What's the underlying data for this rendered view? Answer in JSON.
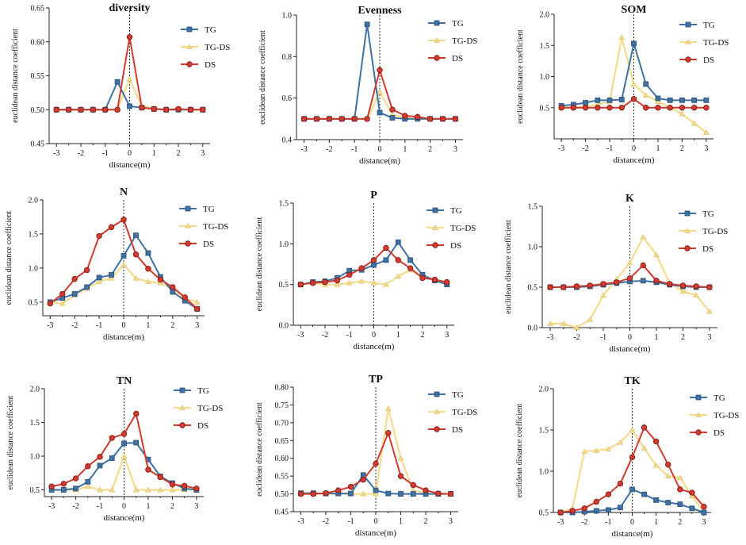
{
  "colors": {
    "TG": "#3f72a3",
    "TG-DS": "#f4dc8c",
    "DS": "#d23a2f"
  },
  "x": [
    -3,
    -2.5,
    -2,
    -1.5,
    -1,
    -0.5,
    0,
    0.5,
    1,
    1.5,
    2,
    2.5,
    3
  ],
  "xlabel": "distance(m)",
  "ylabel": "euclidean distance coefficient",
  "chart_data": [
    {
      "type": "line",
      "title": "diversity",
      "ylim": [
        0.45,
        0.65
      ],
      "yticks": [
        "0.45",
        "0.50",
        "0.55",
        "0.60",
        "0.65"
      ],
      "ytick_values": [
        0.45,
        0.5,
        0.55,
        0.6,
        0.65
      ],
      "xticks": [
        "-3",
        "-2",
        "-1",
        "0",
        "1",
        "2",
        "3"
      ],
      "legend": [
        "TG",
        "TG-DS",
        "DS"
      ],
      "series": [
        {
          "name": "TG",
          "values": [
            0.5,
            0.5,
            0.5,
            0.5,
            0.5,
            0.541,
            0.505,
            0.503,
            0.501,
            0.5,
            0.5,
            0.5,
            0.5
          ]
        },
        {
          "name": "TG-DS",
          "values": [
            0.5,
            0.5,
            0.5,
            0.5,
            0.5,
            0.5,
            0.545,
            0.505,
            0.502,
            0.5,
            0.5,
            0.5,
            0.5
          ]
        },
        {
          "name": "DS",
          "values": [
            0.5,
            0.5,
            0.5,
            0.5,
            0.5,
            0.5,
            0.607,
            0.503,
            0.501,
            0.5,
            0.501,
            0.5,
            0.5
          ]
        }
      ]
    },
    {
      "type": "line",
      "title": "Evenness",
      "ylim": [
        0.4,
        1.0
      ],
      "yticks": [
        "0.4",
        "0.6",
        "0.8",
        "1.0"
      ],
      "ytick_values": [
        0.4,
        0.6,
        0.8,
        1.0
      ],
      "xticks": [
        "-3",
        "-2",
        "-1",
        "0",
        "1",
        "2",
        "3"
      ],
      "legend": [
        "TG",
        "TG-DS",
        "DS"
      ],
      "series": [
        {
          "name": "TG",
          "values": [
            0.5,
            0.5,
            0.5,
            0.5,
            0.5,
            0.955,
            0.53,
            0.505,
            0.5,
            0.5,
            0.5,
            0.5,
            0.5
          ]
        },
        {
          "name": "TG-DS",
          "values": [
            0.5,
            0.5,
            0.5,
            0.5,
            0.5,
            0.5,
            0.63,
            0.52,
            0.505,
            0.5,
            0.5,
            0.5,
            0.5
          ]
        },
        {
          "name": "DS",
          "values": [
            0.5,
            0.5,
            0.5,
            0.5,
            0.5,
            0.5,
            0.735,
            0.545,
            0.515,
            0.51,
            0.5,
            0.5,
            0.5
          ]
        }
      ]
    },
    {
      "type": "line",
      "title": "SOM",
      "ylim": [
        0.0,
        2.0
      ],
      "yticks": [
        "0.5",
        "1.0",
        "1.5",
        "2.0"
      ],
      "ytick_values": [
        0.5,
        1.0,
        1.5,
        2.0
      ],
      "xticks": [
        "-3",
        "-2",
        "-1",
        "0",
        "1",
        "2",
        "3"
      ],
      "legend": [
        "TG",
        "TG-DS",
        "DS"
      ],
      "series": [
        {
          "name": "TG",
          "values": [
            0.53,
            0.55,
            0.58,
            0.62,
            0.62,
            0.63,
            1.53,
            0.88,
            0.65,
            0.62,
            0.62,
            0.62,
            0.62
          ]
        },
        {
          "name": "TG-DS",
          "values": [
            0.5,
            0.5,
            0.52,
            0.55,
            0.6,
            1.63,
            0.88,
            0.7,
            0.6,
            0.5,
            0.4,
            0.25,
            0.1
          ]
        },
        {
          "name": "DS",
          "values": [
            0.5,
            0.5,
            0.5,
            0.5,
            0.5,
            0.5,
            0.64,
            0.5,
            0.5,
            0.5,
            0.5,
            0.5,
            0.5
          ]
        }
      ]
    },
    {
      "type": "line",
      "title": "N",
      "ylim": [
        0.3,
        2.0
      ],
      "yticks": [
        "0.5",
        "1.0",
        "1.5",
        "2.0"
      ],
      "ytick_values": [
        0.5,
        1.0,
        1.5,
        2.0
      ],
      "xticks": [
        "-3",
        "-2",
        "-1",
        "0",
        "1",
        "2",
        "3"
      ],
      "legend": [
        "TG",
        "TG-DS",
        "DS"
      ],
      "series": [
        {
          "name": "TG",
          "values": [
            0.5,
            0.56,
            0.62,
            0.72,
            0.86,
            0.9,
            1.18,
            1.48,
            1.22,
            0.87,
            0.65,
            0.52,
            0.4
          ]
        },
        {
          "name": "TG-DS",
          "values": [
            0.5,
            0.48,
            0.6,
            0.7,
            0.8,
            0.85,
            1.05,
            0.85,
            0.8,
            0.78,
            0.7,
            0.55,
            0.5
          ]
        },
        {
          "name": "DS",
          "values": [
            0.48,
            0.62,
            0.84,
            0.97,
            1.47,
            1.6,
            1.71,
            1.2,
            0.99,
            0.83,
            0.72,
            0.57,
            0.4
          ]
        }
      ]
    },
    {
      "type": "line",
      "title": "P",
      "ylim": [
        0.0,
        1.5
      ],
      "yticks": [
        "0.0",
        "0.5",
        "1.0",
        "1.5"
      ],
      "ytick_values": [
        0.0,
        0.5,
        1.0,
        1.5
      ],
      "xticks": [
        "-3",
        "-2",
        "-1",
        "0",
        "1",
        "2",
        "3"
      ],
      "legend": [
        "TG",
        "TG-DS",
        "DS"
      ],
      "series": [
        {
          "name": "TG",
          "values": [
            0.5,
            0.53,
            0.54,
            0.58,
            0.67,
            0.68,
            0.74,
            0.8,
            1.02,
            0.8,
            0.62,
            0.55,
            0.5
          ]
        },
        {
          "name": "TG-DS",
          "values": [
            0.5,
            0.52,
            0.5,
            0.5,
            0.52,
            0.54,
            0.52,
            0.5,
            0.6,
            0.68,
            0.6,
            0.55,
            0.52
          ]
        },
        {
          "name": "DS",
          "values": [
            0.5,
            0.52,
            0.53,
            0.55,
            0.62,
            0.7,
            0.8,
            0.95,
            0.8,
            0.7,
            0.58,
            0.56,
            0.53
          ]
        }
      ]
    },
    {
      "type": "line",
      "title": "K",
      "ylim": [
        0.0,
        1.5
      ],
      "yticks": [
        "0.0",
        "0.5",
        "1.0",
        "1.5"
      ],
      "ytick_values": [
        0.0,
        0.5,
        1.0,
        1.5
      ],
      "xticks": [
        "-3",
        "-2",
        "-1",
        "0",
        "1",
        "2",
        "3"
      ],
      "legend": [
        "TG",
        "TG-DS",
        "DS"
      ],
      "series": [
        {
          "name": "TG",
          "values": [
            0.5,
            0.5,
            0.5,
            0.51,
            0.53,
            0.55,
            0.57,
            0.58,
            0.56,
            0.53,
            0.51,
            0.5,
            0.5
          ]
        },
        {
          "name": "TG-DS",
          "values": [
            0.05,
            0.05,
            0.0,
            0.1,
            0.4,
            0.6,
            0.8,
            1.12,
            0.9,
            0.55,
            0.45,
            0.4,
            0.2
          ]
        },
        {
          "name": "DS",
          "values": [
            0.5,
            0.5,
            0.51,
            0.52,
            0.54,
            0.56,
            0.61,
            0.77,
            0.58,
            0.54,
            0.52,
            0.51,
            0.5
          ]
        }
      ]
    },
    {
      "type": "line",
      "title": "TN",
      "ylim": [
        0.4,
        2.0
      ],
      "yticks": [
        "0.5",
        "1.0",
        "1.5",
        "2.0"
      ],
      "ytick_values": [
        0.5,
        1.0,
        1.5,
        2.0
      ],
      "xticks": [
        "-3",
        "-2",
        "-1",
        "0",
        "1",
        "2",
        "3"
      ],
      "legend": [
        "TG",
        "TG-DS",
        "DS"
      ],
      "series": [
        {
          "name": "TG",
          "values": [
            0.5,
            0.5,
            0.52,
            0.62,
            0.86,
            0.97,
            1.19,
            1.2,
            0.95,
            0.7,
            0.6,
            0.52,
            0.5
          ]
        },
        {
          "name": "TG-DS",
          "values": [
            0.5,
            0.5,
            0.5,
            0.55,
            0.5,
            0.5,
            1.0,
            0.5,
            0.5,
            0.5,
            0.5,
            0.5,
            0.5
          ]
        },
        {
          "name": "DS",
          "values": [
            0.55,
            0.59,
            0.67,
            0.85,
            0.99,
            1.27,
            1.33,
            1.63,
            0.8,
            0.69,
            0.58,
            0.56,
            0.52
          ]
        }
      ]
    },
    {
      "type": "line",
      "title": "TP",
      "ylim": [
        0.45,
        0.8
      ],
      "yticks": [
        "0.45",
        "0.50",
        "0.55",
        "0.60",
        "0.65",
        "0.70",
        "0.75",
        "0.80"
      ],
      "ytick_values": [
        0.45,
        0.5,
        0.55,
        0.6,
        0.65,
        0.7,
        0.75,
        0.8
      ],
      "xticks": [
        "-3",
        "-2",
        "-1",
        "0",
        "1",
        "2",
        "3"
      ],
      "legend": [
        "TG",
        "TG-DS",
        "DS"
      ],
      "series": [
        {
          "name": "TG",
          "values": [
            0.502,
            0.502,
            0.501,
            0.501,
            0.501,
            0.553,
            0.51,
            0.501,
            0.5,
            0.5,
            0.5,
            0.5,
            0.5
          ]
        },
        {
          "name": "TG-DS",
          "values": [
            0.5,
            0.5,
            0.5,
            0.5,
            0.5,
            0.5,
            0.5,
            0.74,
            0.6,
            0.51,
            0.5,
            0.5,
            0.5
          ]
        },
        {
          "name": "DS",
          "values": [
            0.5,
            0.5,
            0.502,
            0.51,
            0.52,
            0.54,
            0.585,
            0.671,
            0.55,
            0.525,
            0.51,
            0.501,
            0.5
          ]
        }
      ]
    },
    {
      "type": "line",
      "title": "TK",
      "ylim": [
        0.5,
        2.0
      ],
      "yticks": [
        "0.5",
        "1.0",
        "1.5",
        "2.0"
      ],
      "ytick_values": [
        0.5,
        1.0,
        1.5,
        2.0
      ],
      "xticks": [
        "-3",
        "-2",
        "-1",
        "0",
        "1",
        "2",
        "3"
      ],
      "legend": [
        "TG",
        "TG-DS",
        "DS"
      ],
      "series": [
        {
          "name": "TG",
          "values": [
            0.5,
            0.5,
            0.51,
            0.52,
            0.53,
            0.56,
            0.78,
            0.72,
            0.65,
            0.62,
            0.6,
            0.55,
            0.5
          ]
        },
        {
          "name": "TG-DS",
          "values": [
            0.5,
            0.55,
            1.24,
            1.25,
            1.27,
            1.35,
            1.5,
            1.28,
            1.07,
            0.94,
            0.92,
            0.7,
            0.5
          ]
        },
        {
          "name": "DS",
          "values": [
            0.5,
            0.52,
            0.55,
            0.63,
            0.72,
            0.85,
            1.17,
            1.53,
            1.36,
            1.08,
            0.78,
            0.74,
            0.57
          ]
        }
      ]
    }
  ]
}
